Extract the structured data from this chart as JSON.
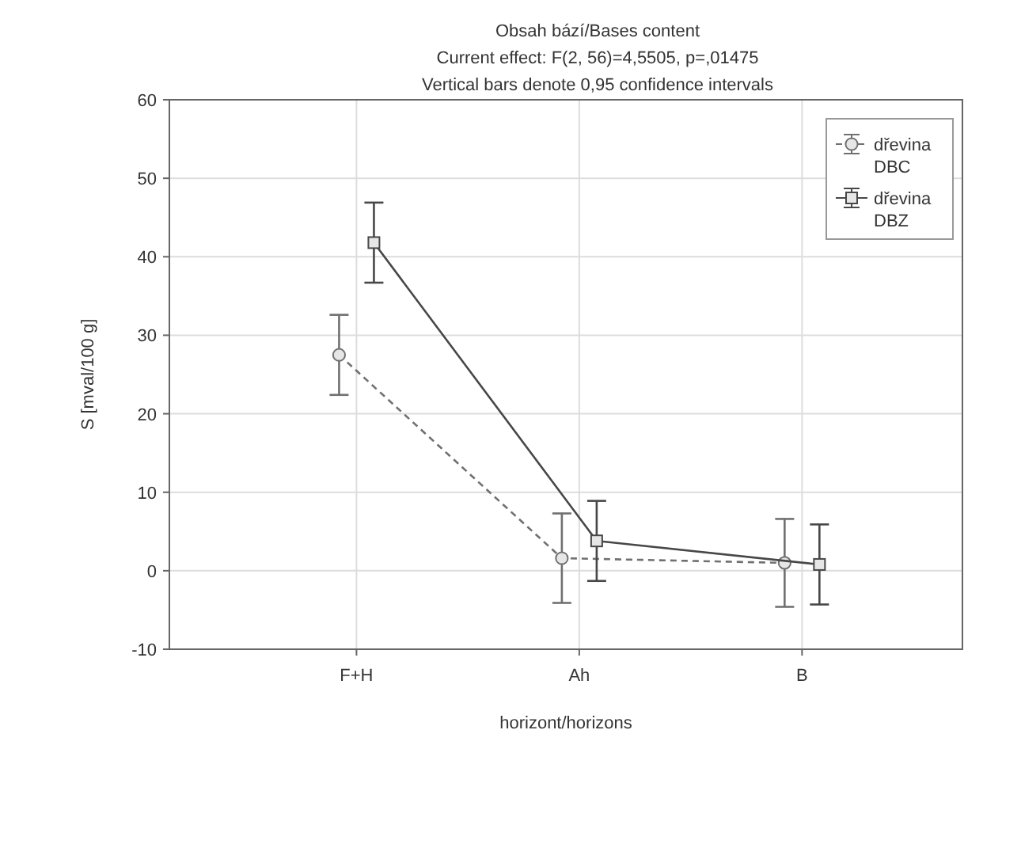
{
  "chart_data": {
    "type": "line",
    "title": "Obsah bází/Bases content",
    "subtitle": "Current effect: F(2, 56)=4,5505, p=,01475\nVertical bars denote 0,95 confidence intervals",
    "xlabel": "horizont/horizons",
    "ylabel": "S [mval/100 g]",
    "categories": [
      "F+H",
      "Ah",
      "B"
    ],
    "ylim": [
      -10,
      60
    ],
    "yticks": [
      -10,
      0,
      10,
      20,
      30,
      40,
      50,
      60
    ],
    "grid": true,
    "legend": "top right",
    "series": [
      {
        "name": "dřevina DBC",
        "color": "#707070",
        "values": [
          27.5,
          1.6,
          1.0
        ],
        "errors": [
          5.1,
          5.7,
          5.6
        ],
        "marker": "circle",
        "line_style": "dashed"
      },
      {
        "name": "dřevina DBZ",
        "color": "#474747",
        "values": [
          41.8,
          3.8,
          0.8
        ],
        "errors": [
          5.1,
          5.1,
          5.1
        ],
        "marker": "square",
        "line_style": "solid"
      }
    ]
  }
}
